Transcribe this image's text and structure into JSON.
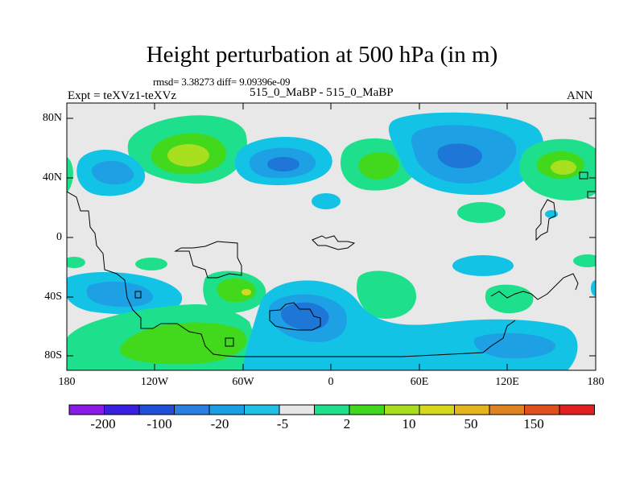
{
  "title": "Height perturbation at 500 hPa (in m)",
  "stats": "rmsd= 3.38273 diff= 9.09396e-09",
  "left_label": "Expt = teXVz1-teXVz",
  "center_label": "515_0_MaBP - 515_0_MaBP",
  "right_label": "ANN",
  "lat_ticks": [
    "80N",
    "40N",
    "0",
    "40S",
    "80S"
  ],
  "lon_ticks": [
    "180",
    "120W",
    "60W",
    "0",
    "60E",
    "120E",
    "180"
  ],
  "colorbar": {
    "labels": [
      "-200",
      "-100",
      "-20",
      "-5",
      "2",
      "10",
      "50",
      "150"
    ],
    "colors": [
      "#8a1be6",
      "#3b1fe0",
      "#1f4fd8",
      "#2a7fe0",
      "#1a9ee6",
      "#1fbfe6",
      "#e6e6e6",
      "#1fe08a",
      "#3fd81f",
      "#a8e01f",
      "#d6d81f",
      "#e6b41f",
      "#e0821f",
      "#e0501f",
      "#e01f1f"
    ]
  },
  "palette": {
    "background": "#e8e8e8",
    "cyan": "#12c3e6",
    "blue": "#1da1e4",
    "deep_blue": "#1e76d6",
    "green": "#1ee08c",
    "lime": "#42d81c",
    "yellow_green": "#a8e01f",
    "yellow": "#d8d81c"
  }
}
